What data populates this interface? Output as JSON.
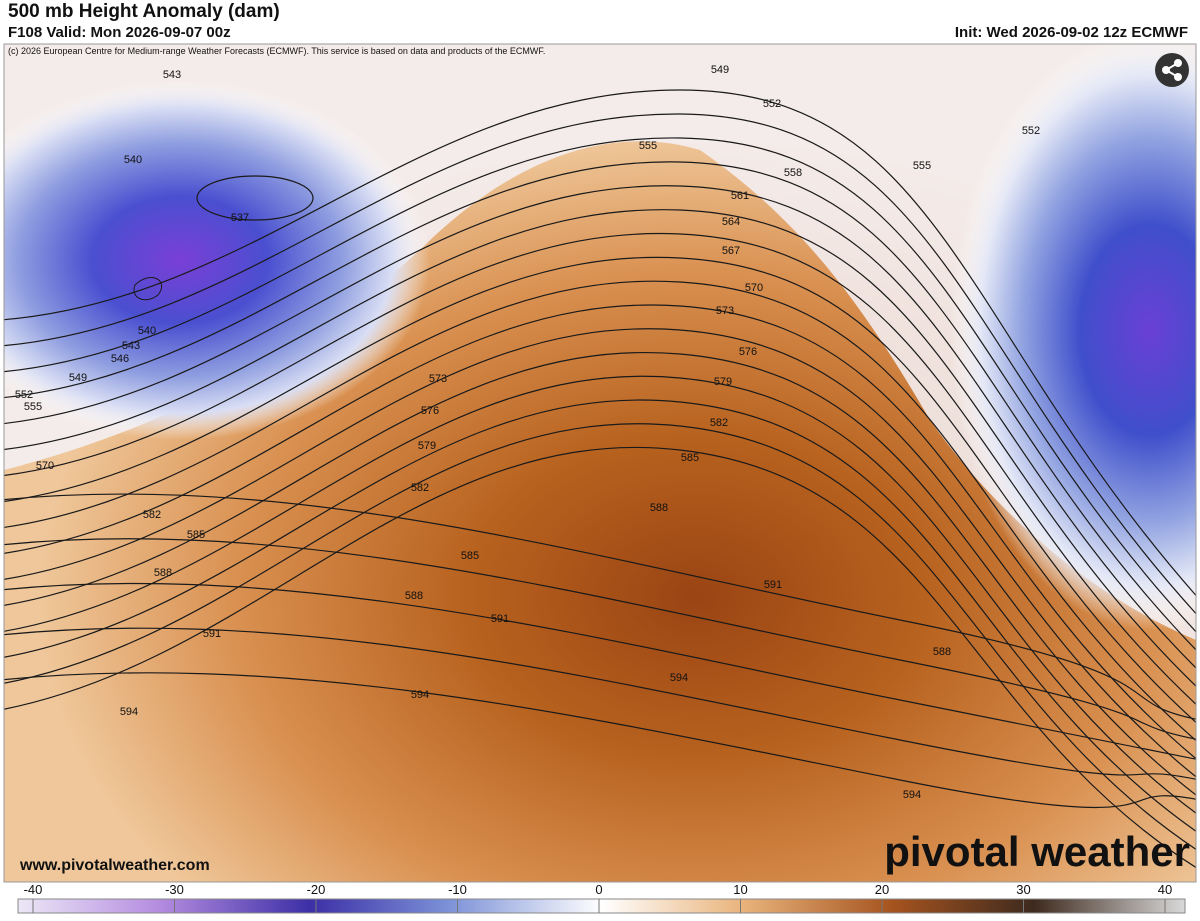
{
  "header": {
    "title": "500 mb Height Anomaly (dam)",
    "valid": "F108 Valid: Mon 2026-09-07 00z",
    "init": "Init: Wed 2026-09-02 12z ECMWF"
  },
  "map": {
    "copyright": "(c) 2026 European Centre for Medium-range Weather Forecasts (ECMWF). This service is based on data and products of the ECMWF.",
    "contour_labels": [
      543,
      540,
      537,
      540,
      543,
      546,
      549,
      552,
      555,
      570,
      582,
      585,
      588,
      591,
      594,
      549,
      552,
      555,
      558,
      561,
      564,
      567,
      570,
      573,
      576,
      579,
      582,
      585,
      588,
      591,
      594,
      588,
      594,
      573,
      576,
      579,
      582,
      585,
      588,
      591,
      594,
      552,
      555
    ],
    "website": "www.pivotalweather.com",
    "logo": "pivotal weather"
  },
  "colorbar": {
    "ticks": [
      -40,
      -30,
      -20,
      -10,
      0,
      10,
      20,
      30,
      40
    ]
  }
}
